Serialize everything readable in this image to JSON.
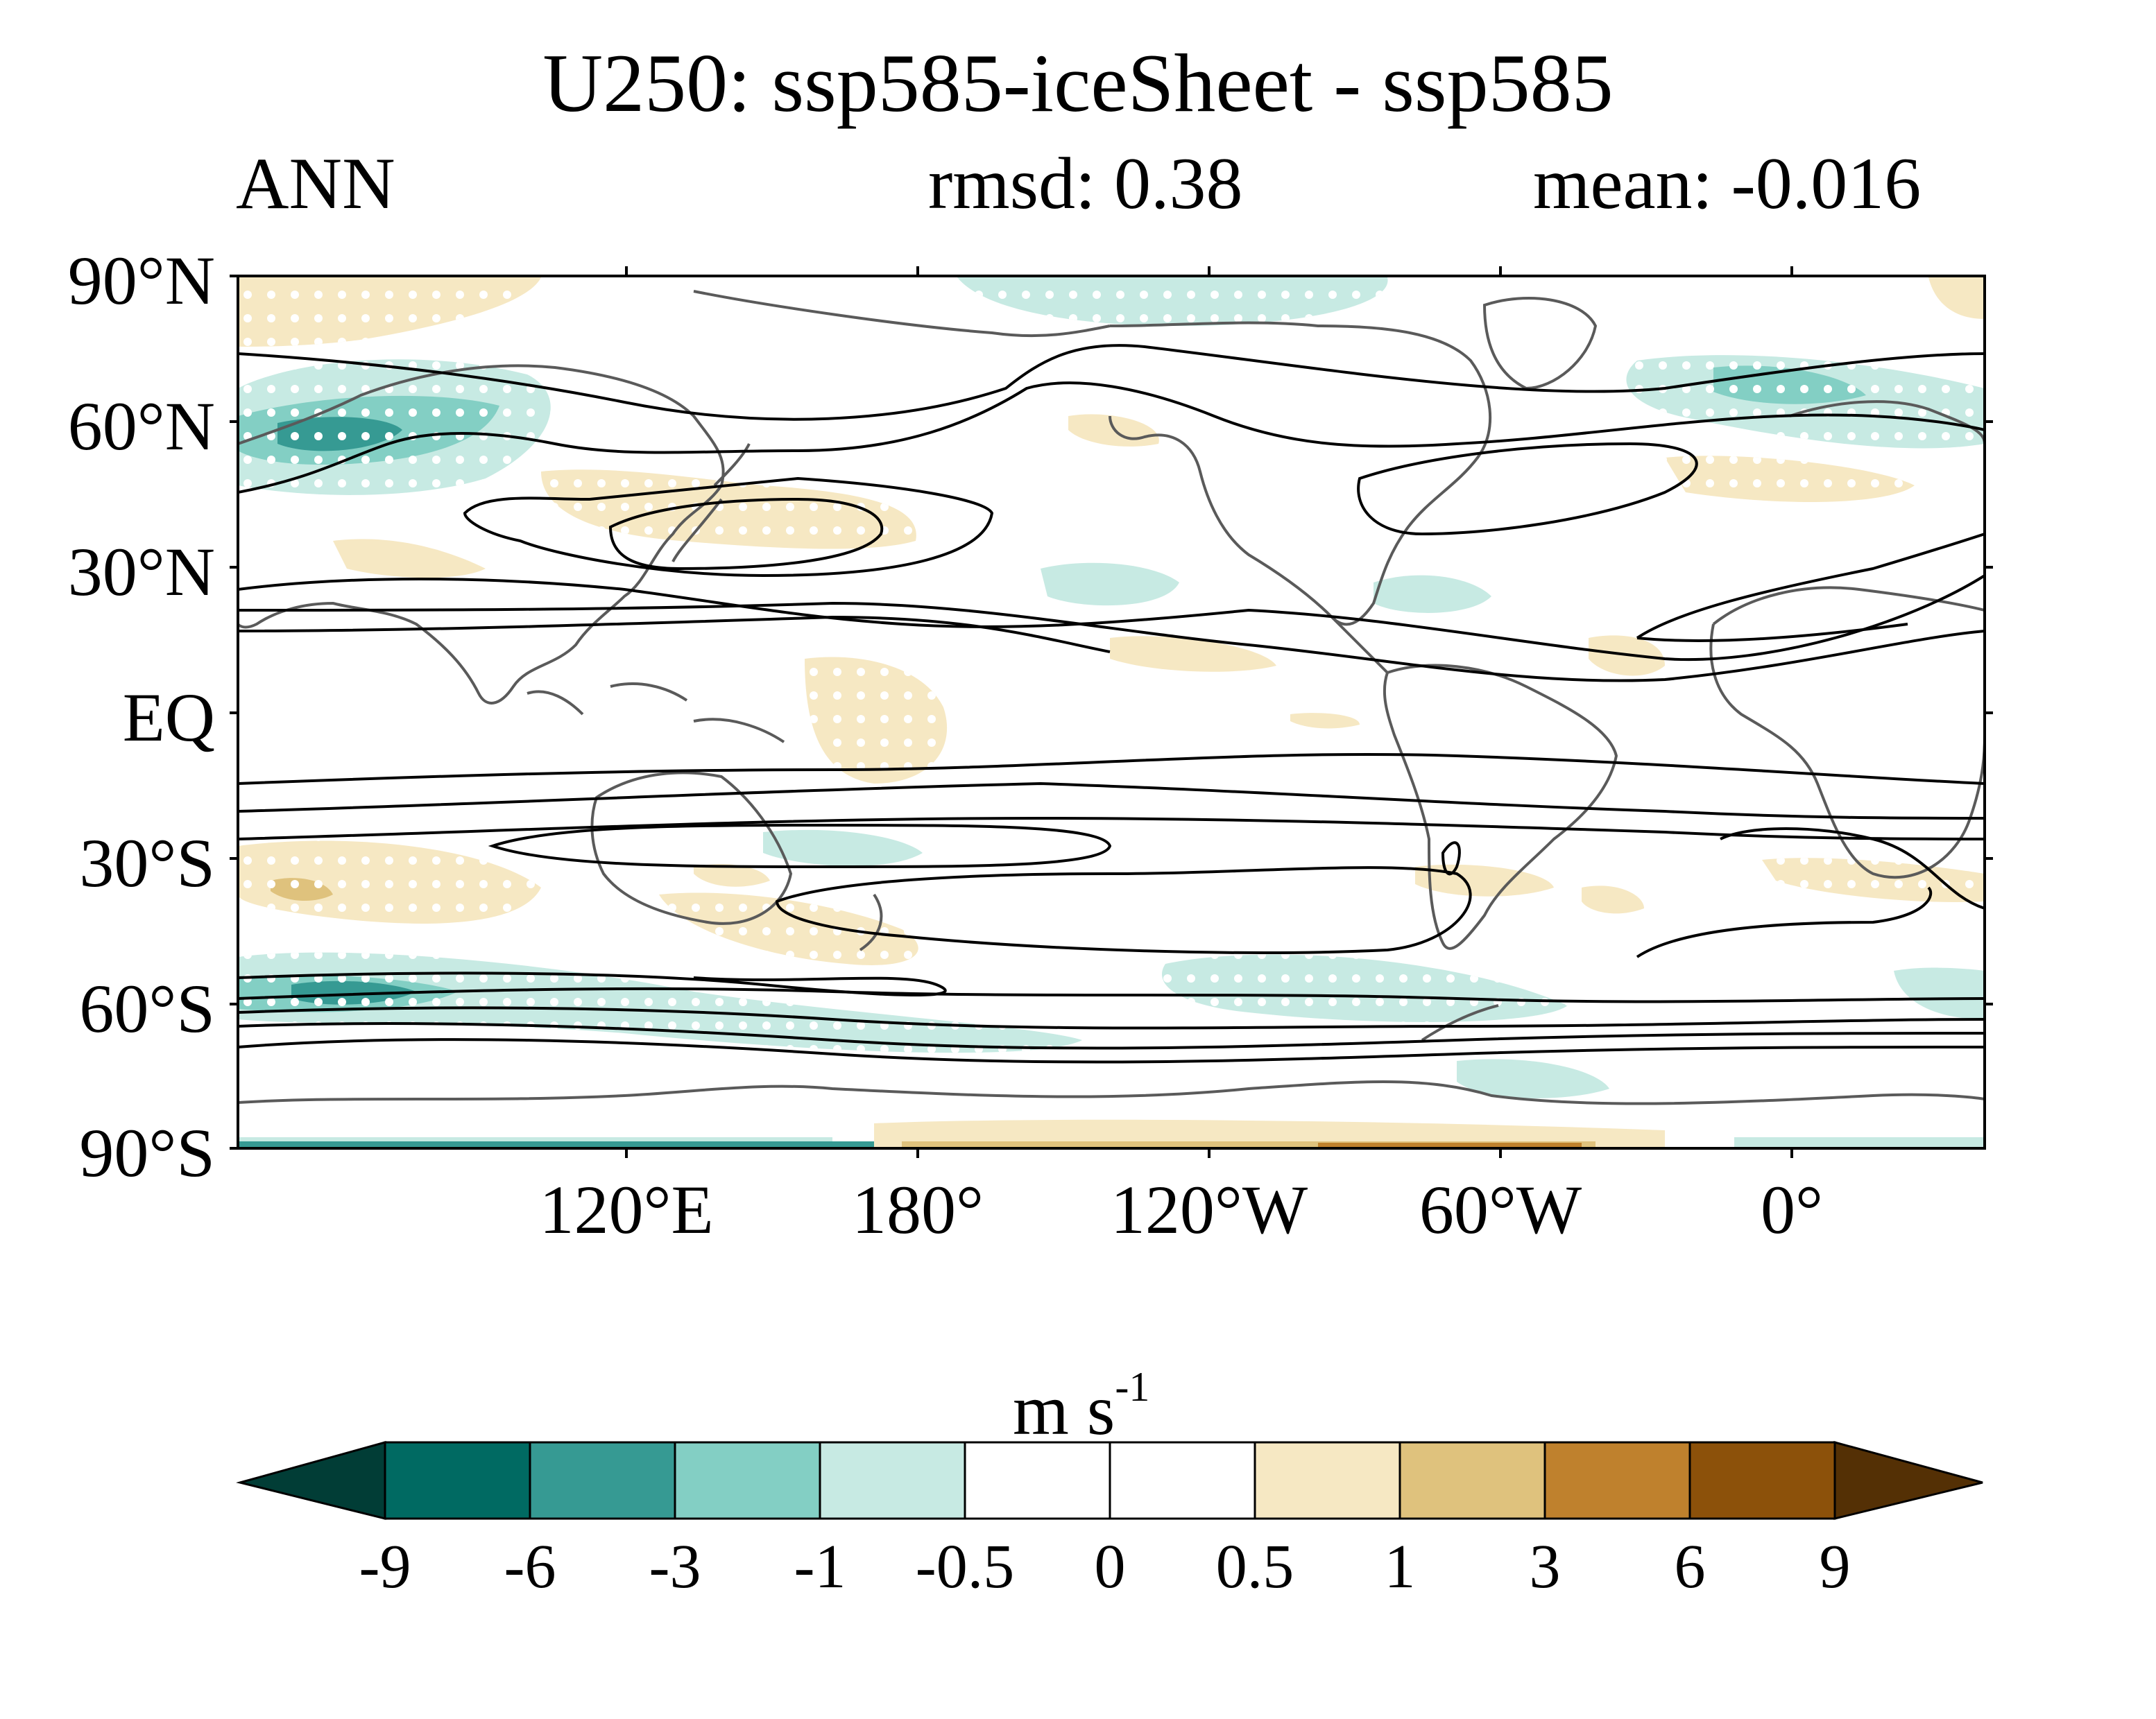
{
  "title": "U250: ssp585-iceSheet - ssp585",
  "subtitle": {
    "left": "ANN",
    "center": "rmsd: 0.38",
    "right": "mean: -0.016"
  },
  "map": {
    "projection": "equirectangular, centered ~150°W",
    "latitude_labels": [
      "90°N",
      "60°N",
      "30°N",
      "EQ",
      "30°S",
      "60°S",
      "90°S"
    ],
    "longitude_labels": [
      "120°E",
      "180°",
      "120°W",
      "60°W",
      "0°"
    ],
    "layers": [
      "filled anomaly shading",
      "stippling for significance",
      "black climatology contours",
      "gray coastlines"
    ]
  },
  "colorbar": {
    "units_base": "m s",
    "units_exp": "-1",
    "tick_labels": [
      "-9",
      "-6",
      "-3",
      "-1",
      "-0.5",
      "0",
      "0.5",
      "1",
      "3",
      "6",
      "9"
    ],
    "colors": [
      "#013d36",
      "#006a62",
      "#369a93",
      "#83cfc4",
      "#c7eae3",
      "#ffffff",
      "#ffffff",
      "#f6e8c3",
      "#dfc27d",
      "#bf812d",
      "#8c510a",
      "#543005"
    ]
  }
}
